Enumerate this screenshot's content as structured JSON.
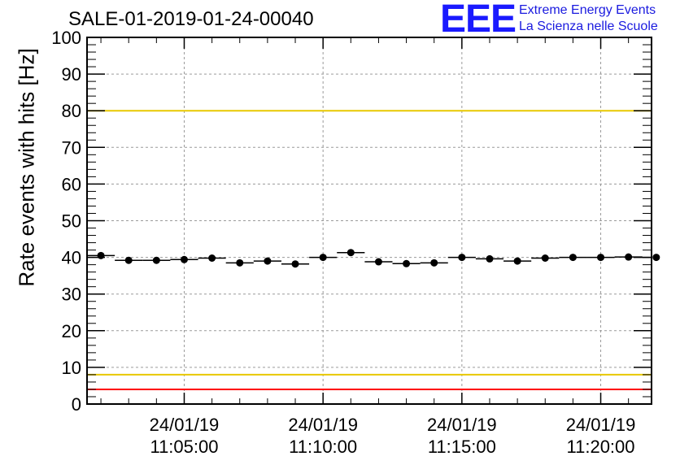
{
  "chart_data": {
    "type": "scatter",
    "title": "SALE-01-2019-01-24-00040",
    "ylabel": "Rate events with hits [Hz]",
    "xlabel": "",
    "x_unit": "minutes after 11:00:00 on 24/01/19",
    "ylim": [
      0,
      100
    ],
    "xlim": [
      1.5,
      21.83
    ],
    "yticks": [
      0,
      10,
      20,
      30,
      40,
      50,
      60,
      70,
      80,
      90,
      100
    ],
    "xticks": [
      {
        "value": 5,
        "line1": "24/01/19",
        "line2": "11:05:00"
      },
      {
        "value": 10,
        "line1": "24/01/19",
        "line2": "11:10:00"
      },
      {
        "value": 15,
        "line1": "24/01/19",
        "line2": "11:15:00"
      },
      {
        "value": 20,
        "line1": "24/01/19",
        "line2": "11:20:00"
      }
    ],
    "grid": true,
    "series": [
      {
        "x": [
          2.0,
          3.0,
          4.0,
          5.0,
          6.0,
          7.0,
          8.0,
          9.0,
          10.0,
          11.0,
          12.0,
          13.0,
          14.0,
          15.0,
          16.0,
          17.0,
          18.0,
          19.0,
          20.0,
          21.0,
          22.0
        ],
        "y": [
          40.5,
          39.2,
          39.2,
          39.4,
          39.8,
          38.5,
          39.0,
          38.2,
          40.0,
          41.3,
          38.8,
          38.3,
          38.5,
          40.0,
          39.6,
          39.0,
          39.8,
          40.0,
          40.0,
          40.1,
          40.0
        ],
        "x_halfwidth": 0.5,
        "color": "#000000"
      }
    ],
    "threshold_lines": [
      {
        "y": 100,
        "color": "#ff0000"
      },
      {
        "y": 80,
        "color": "#e8c800"
      },
      {
        "y": 8,
        "color": "#e8c800"
      },
      {
        "y": 4,
        "color": "#ff0000"
      }
    ]
  },
  "logo": {
    "mark": "EEE",
    "line1": "Extreme Energy Events",
    "line2": "La Scienza nelle Scuole",
    "color": "#1a1aff"
  }
}
